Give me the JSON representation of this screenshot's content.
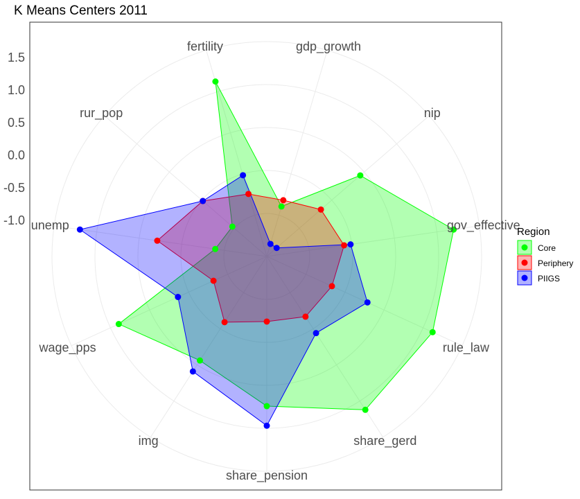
{
  "chart_data": {
    "type": "radar",
    "title": "K Means Centers 2011",
    "axes": [
      "gdp_growth",
      "nip",
      "gov_effective",
      "rule_law",
      "share_gerd",
      "share_pension",
      "img",
      "wage_pps",
      "unemp",
      "rur_pop",
      "fertility"
    ],
    "radial_ticks": [
      "1.5",
      "1.0",
      "0.5",
      "0.0",
      "-0.5",
      "-1.0"
    ],
    "tick_values": [
      1.5,
      1.0,
      0.5,
      0.0,
      -0.5,
      -1.0
    ],
    "rlim": [
      -1.5,
      1.8
    ],
    "grid": true,
    "legend": {
      "title": "Region",
      "position": "right"
    },
    "series": [
      {
        "name": "Core",
        "color": "#00ff00",
        "values": [
          -0.7,
          0.4,
          1.4,
          1.3,
          1.3,
          0.8,
          0.4,
          1.0,
          -0.7,
          -0.8,
          1.3
        ]
      },
      {
        "name": "Periphery",
        "color": "#ff0000",
        "values": [
          -0.6,
          -0.4,
          -0.3,
          -0.4,
          -0.4,
          -0.5,
          -0.3,
          -0.6,
          0.2,
          -0.2,
          -0.5
        ]
      },
      {
        "name": "PIIGS",
        "color": "#0000ff",
        "values": [
          -1.3,
          -1.3,
          -0.2,
          0.2,
          -0.1,
          1.1,
          0.6,
          0.0,
          1.4,
          -0.2,
          -0.2
        ]
      }
    ]
  }
}
